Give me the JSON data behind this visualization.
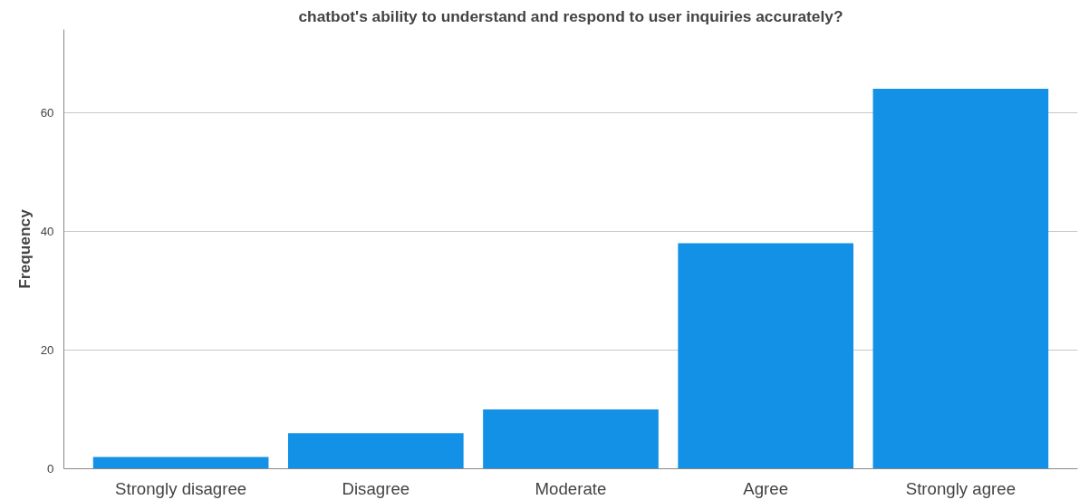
{
  "chart_data": {
    "type": "bar",
    "title": "chatbot's ability to understand and respond to user inquiries accurately?",
    "ylabel": "Frequency",
    "categories": [
      "Strongly disagree",
      "Disagree",
      "Moderate",
      "Agree",
      "Strongly agree"
    ],
    "values": [
      2,
      6,
      10,
      38,
      64
    ],
    "color": "#1391e6",
    "ylim": [
      0,
      74
    ],
    "yticks": [
      0,
      20,
      40,
      60
    ],
    "grid": "y"
  }
}
